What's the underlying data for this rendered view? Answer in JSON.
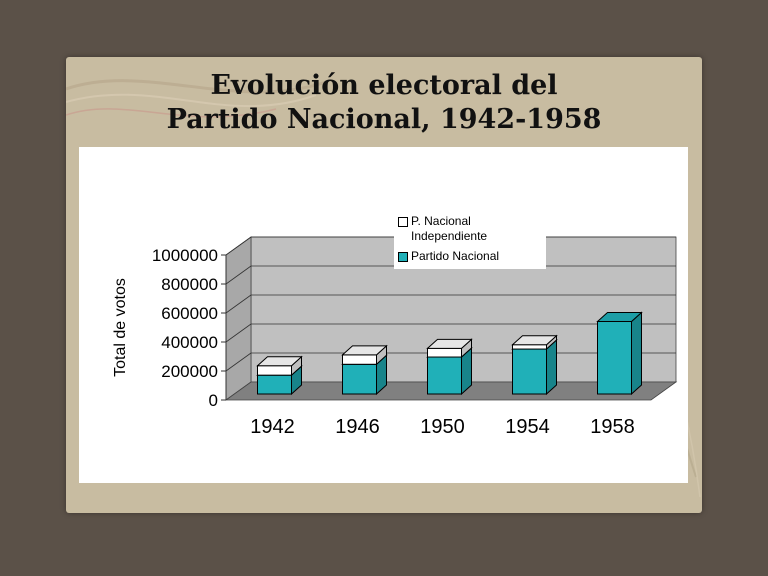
{
  "title": {
    "line1": "Evolución electoral del",
    "line2": "Partido Nacional, 1942-1958"
  },
  "colors": {
    "slide_bg": "#c8bca1",
    "outer_bg": "#5b5148",
    "series_nacional": "#20b0b8",
    "series_independiente": "#ffffff",
    "wall": "#c0c0c0",
    "floor": "#808080"
  },
  "legend": {
    "items": [
      {
        "label": "P. Nacional Independiente",
        "color": "#ffffff"
      },
      {
        "label": "Partido Nacional",
        "color": "#20b0b8"
      }
    ]
  },
  "chart_data": {
    "type": "bar",
    "stacked": true,
    "three_d": true,
    "title": "",
    "xlabel": "",
    "ylabel": "Total de votos",
    "categories": [
      "1942",
      "1946",
      "1950",
      "1954",
      "1958"
    ],
    "series": [
      {
        "name": "Partido Nacional",
        "values": [
          130000,
          205000,
          255000,
          310000,
          500000
        ]
      },
      {
        "name": "P. Nacional Independiente",
        "values": [
          65000,
          65000,
          60000,
          30000,
          0
        ]
      }
    ],
    "ylim": [
      0,
      1000000
    ],
    "yticks": [
      "0",
      "200000",
      "400000",
      "600000",
      "800000",
      "1000000"
    ],
    "grid": true,
    "legend_position": "top-right"
  }
}
